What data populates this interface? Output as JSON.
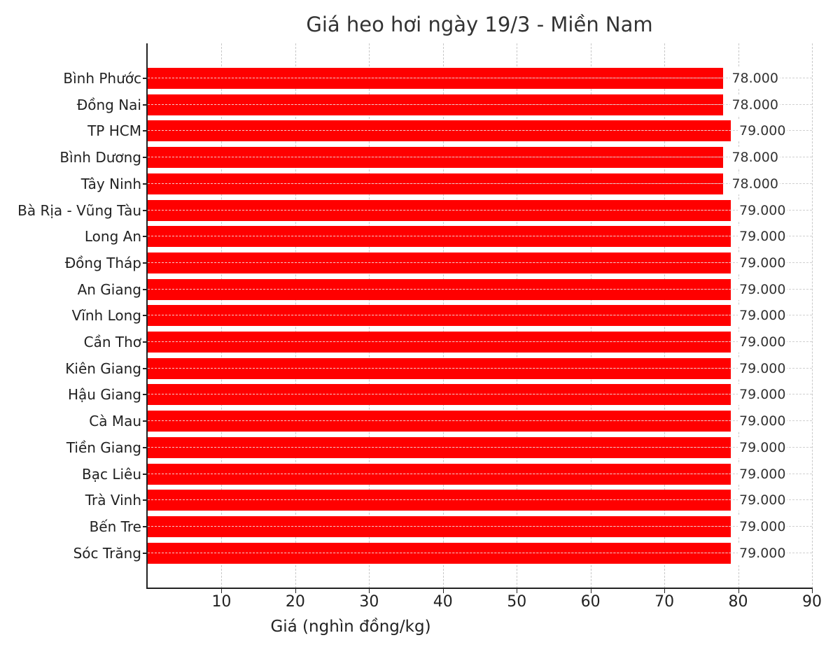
{
  "chart_data": {
    "type": "bar",
    "orientation": "horizontal",
    "title": "Giá heo hơi ngày 19/3 - Miền Nam",
    "xlabel": "Giá (nghìn đồng/kg)",
    "ylabel": "",
    "xlim": [
      0,
      90
    ],
    "xticks": [
      10,
      20,
      30,
      40,
      50,
      60,
      70,
      80,
      90
    ],
    "grid": true,
    "bar_color": "#ff0000",
    "categories": [
      "Bình Phước",
      "Đồng Nai",
      "TP HCM",
      "Bình Dương",
      "Tây Ninh",
      "Bà Rịa - Vũng Tàu",
      "Long An",
      "Đồng Tháp",
      "An Giang",
      "Vĩnh Long",
      "Cần Thơ",
      "Kiên Giang",
      "Hậu Giang",
      "Cà Mau",
      "Tiền Giang",
      "Bạc Liêu",
      "Trà Vinh",
      "Bến Tre",
      "Sóc Trăng"
    ],
    "values": [
      78,
      78,
      79,
      78,
      78,
      79,
      79,
      79,
      79,
      79,
      79,
      79,
      79,
      79,
      79,
      79,
      79,
      79,
      79
    ],
    "value_labels": [
      "78.000",
      "78.000",
      "79.000",
      "78.000",
      "78.000",
      "79.000",
      "79.000",
      "79.000",
      "79.000",
      "79.000",
      "79.000",
      "79.000",
      "79.000",
      "79.000",
      "79.000",
      "79.000",
      "79.000",
      "79.000",
      "79.000"
    ]
  },
  "title": "Giá heo hơi ngày 19/3 - Miền Nam",
  "xlabel": "Giá (nghìn đồng/kg)",
  "xtick_labels": [
    "10",
    "20",
    "30",
    "40",
    "50",
    "60",
    "70",
    "80",
    "90"
  ]
}
